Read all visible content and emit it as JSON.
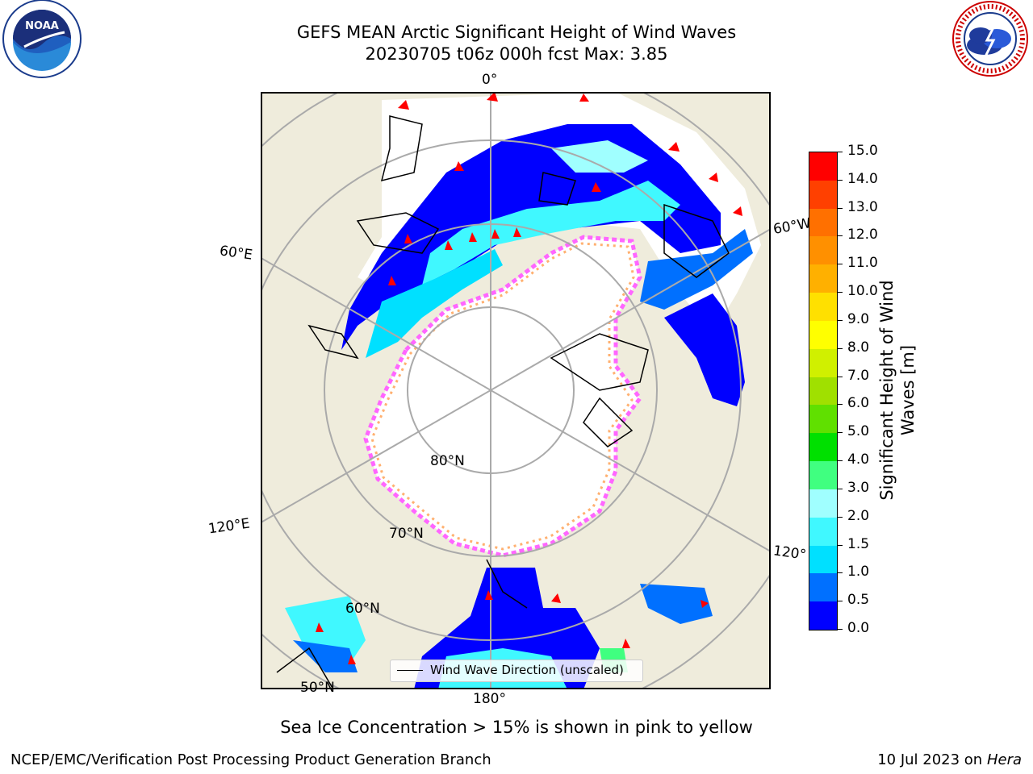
{
  "header": {
    "title_line1": "GEFS MEAN Arctic Significant Height of Wind Waves",
    "title_line2": "20230705 t06z 000h fcst   Max: 3.85",
    "left_logo_text": "NOAA",
    "left_logo_ring": "NATIONAL OCEANIC AND ATMOSPHERIC ADMINISTRATION · U.S. DEPARTMENT OF COMMERCE",
    "right_logo_ring": "NATIONAL WEATHER SERVICE"
  },
  "map": {
    "lon_labels": {
      "top": "0°",
      "left": "60°E",
      "right": "60°W",
      "left_low": "120°E",
      "right_low": "120°",
      "bottom": "180°"
    },
    "lat_labels": {
      "lat80": "80°N",
      "lat70": "70°N",
      "lat60": "60°N",
      "lat50": "50°N"
    },
    "legend_label": "Wind Wave Direction (unscaled)",
    "colors": {
      "land": "#efecdc",
      "ice_free": "#ffffff",
      "grid": "#aaaaaa",
      "arrow": "#ff0000",
      "ice_pink": "#ff66ff",
      "ice_orange": "#ffb070"
    }
  },
  "colorbar": {
    "label_line1": "Significant Height of Wind",
    "label_line2": "Waves [m]",
    "ticks": [
      "0.0",
      "0.5",
      "1.0",
      "1.5",
      "2.0",
      "3.0",
      "4.0",
      "5.0",
      "6.0",
      "7.0",
      "8.0",
      "9.0",
      "10.0",
      "11.0",
      "12.0",
      "13.0",
      "14.0",
      "15.0"
    ],
    "colors": [
      "#0000ff",
      "#0070ff",
      "#00e0ff",
      "#40f8ff",
      "#a0ffff",
      "#40ff80",
      "#00e000",
      "#60e000",
      "#a0e000",
      "#d0f000",
      "#ffff00",
      "#ffe000",
      "#ffb000",
      "#ff9000",
      "#ff7000",
      "#ff4000",
      "#ff0000"
    ]
  },
  "caption": "Sea Ice Concentration > 15% is shown in pink to yellow",
  "footer": {
    "left": "NCEP/EMC/Verification Post Processing Product Generation Branch",
    "right_prefix": "10 Jul 2023 on ",
    "right_host": "Hera"
  }
}
